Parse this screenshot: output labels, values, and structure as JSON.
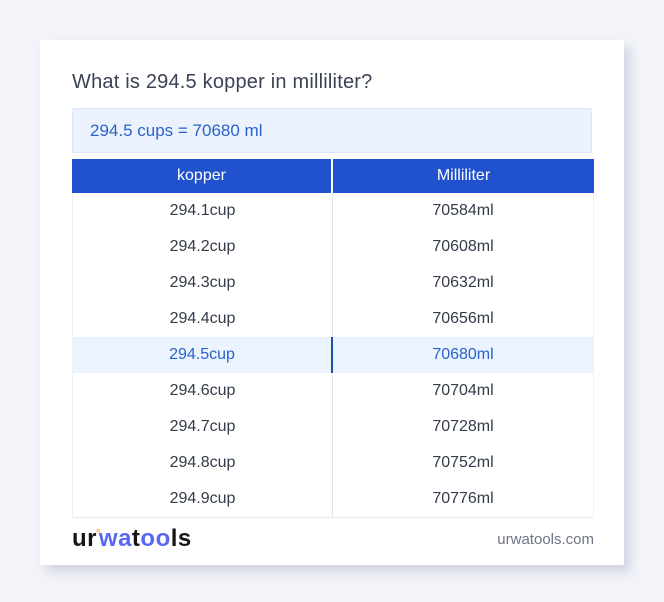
{
  "page": {
    "title": "What is 294.5 kopper in milliliter?"
  },
  "answer": {
    "text": "294.5 cups = 70680 ml"
  },
  "table": {
    "headers": [
      "kopper",
      "Milliliter"
    ],
    "rows": [
      {
        "kopper": "294.1cup",
        "ml": "70584ml"
      },
      {
        "kopper": "294.2cup",
        "ml": "70608ml"
      },
      {
        "kopper": "294.3cup",
        "ml": "70632ml"
      },
      {
        "kopper": "294.4cup",
        "ml": "70656ml"
      },
      {
        "kopper": "294.5cup",
        "ml": "70680ml",
        "highlighted": true
      },
      {
        "kopper": "294.6cup",
        "ml": "70704ml"
      },
      {
        "kopper": "294.7cup",
        "ml": "70728ml"
      },
      {
        "kopper": "294.8cup",
        "ml": "70752ml"
      },
      {
        "kopper": "294.9cup",
        "ml": "70776ml"
      }
    ]
  },
  "footer": {
    "logo": {
      "part1": "ur",
      "degree": "°",
      "part2": "wa",
      "part3": "t",
      "part4": "oo",
      "part5": "ls"
    },
    "site": "urwatools.com"
  },
  "colors": {
    "page_background": "#f3f4f9",
    "card_background": "#ffffff",
    "header_blue": "#2152ce",
    "highlight_row_background": "#ebf3fe",
    "highlight_text_blue": "#2a63c8",
    "answer_box_background": "#ebf2fd",
    "answer_box_border": "#d8e6f9",
    "body_text": "#333b49",
    "title_text": "#3a4254",
    "footer_url_gray": "#6f7585",
    "logo_blue": "#5a67f3",
    "logo_degree_orange": "#f5a623"
  }
}
